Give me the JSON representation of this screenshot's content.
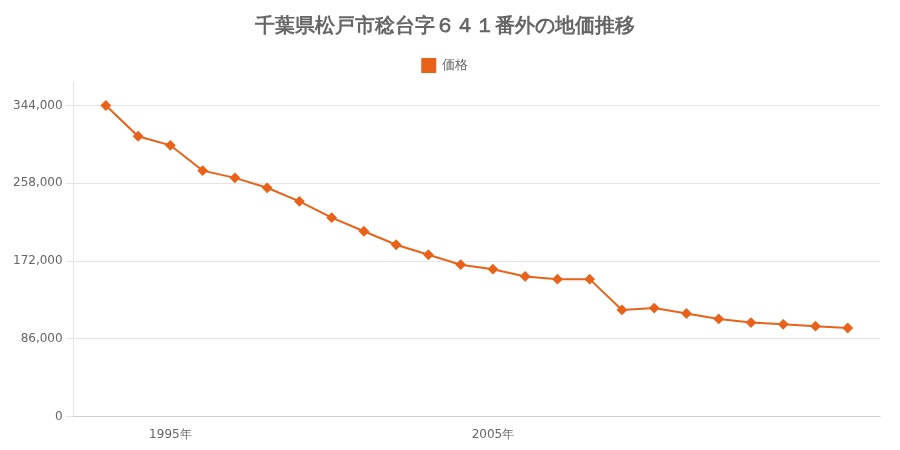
{
  "chart_data": {
    "type": "line",
    "title": "千葉県松戸市稔台字６４１番外の地価推移",
    "x": [
      1993,
      1994,
      1995,
      1996,
      1997,
      1998,
      1999,
      2000,
      2001,
      2002,
      2003,
      2004,
      2005,
      2006,
      2007,
      2008,
      2009,
      2010,
      2011,
      2012,
      2013,
      2014,
      2015,
      2016
    ],
    "series": [
      {
        "name": "価格",
        "color": "#E8621A",
        "marker": "diamond",
        "values": [
          344000,
          310000,
          300000,
          272000,
          264000,
          253000,
          238000,
          220000,
          205000,
          190000,
          179000,
          168000,
          163000,
          155000,
          152000,
          152000,
          118000,
          120000,
          114000,
          108000,
          104000,
          102000,
          100000,
          98000
        ]
      }
    ],
    "xlim": [
      1992,
      2017
    ],
    "xticks": [
      {
        "value": 1995,
        "label": "1995年"
      },
      {
        "value": 2005,
        "label": "2005年"
      }
    ],
    "ylim": [
      0,
      370000
    ],
    "yticks": [
      0,
      {
        "value": 86000,
        "label": "86,000"
      },
      {
        "value": 172000,
        "label": "172,000"
      },
      {
        "value": 258000,
        "label": "258,000"
      },
      {
        "value": 344000,
        "label": "344,000"
      }
    ],
    "grid": "y",
    "legend": "top"
  }
}
